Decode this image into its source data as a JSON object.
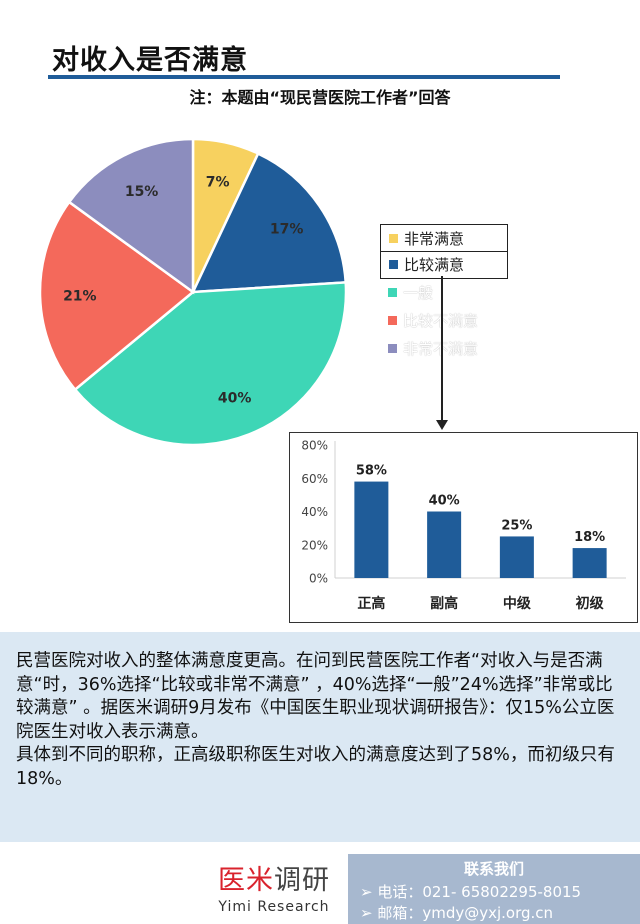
{
  "header": {
    "title": "对收入是否满意",
    "note": "注：本题由“现民营医院工作者”回答"
  },
  "chart_data": [
    {
      "type": "pie",
      "categories": [
        "非常满意",
        "比较满意",
        "一般",
        "比较不满意",
        "非常不满意"
      ],
      "values": [
        7,
        17,
        40,
        21,
        15
      ],
      "labels": [
        "7%",
        "17%",
        "40%",
        "21%",
        "15%"
      ],
      "colors": [
        "#f7d15f",
        "#1f5c99",
        "#3ed6b6",
        "#f4695b",
        "#8c8dbe"
      ],
      "legend": "right",
      "legend_highlight": [
        "非常满意",
        "比较满意"
      ]
    },
    {
      "type": "bar",
      "categories": [
        "正高",
        "副高",
        "中级",
        "初级"
      ],
      "values": [
        58,
        40,
        25,
        18
      ],
      "labels": [
        "58%",
        "40%",
        "25%",
        "18%"
      ],
      "ylim": [
        0,
        80
      ],
      "yticks": [
        "0%",
        "20%",
        "40%",
        "60%",
        "80%"
      ],
      "ytick_values": [
        0,
        20,
        40,
        60,
        80
      ],
      "color": "#1f5c99",
      "grid": false
    }
  ],
  "summary": {
    "paragraph": "民营医院对收入的整体满意度更高。在问到民营医院工作者“对收入与是否满意“时，36%选择“比较或非常不满意” ，40%选择“一般”24%选择”非常或比较满意” 。据医米调研9月发布《中国医生职业现状调研报告》：仅15%公立医院医生对收入表示满意。",
    "paragraph2": "具体到不同的职称，正高级职称医生对收入的满意度达到了58%，而初级只有18%。"
  },
  "footer": {
    "brand_cn_red": "医米",
    "brand_cn_dark": "调研",
    "brand_en": "Yimi Research",
    "contact_title": "联系我们",
    "phone": "➢ 电话：021- 65802295-8015",
    "email": "➢ 邮箱：ymdy@yxj.org.cn"
  }
}
